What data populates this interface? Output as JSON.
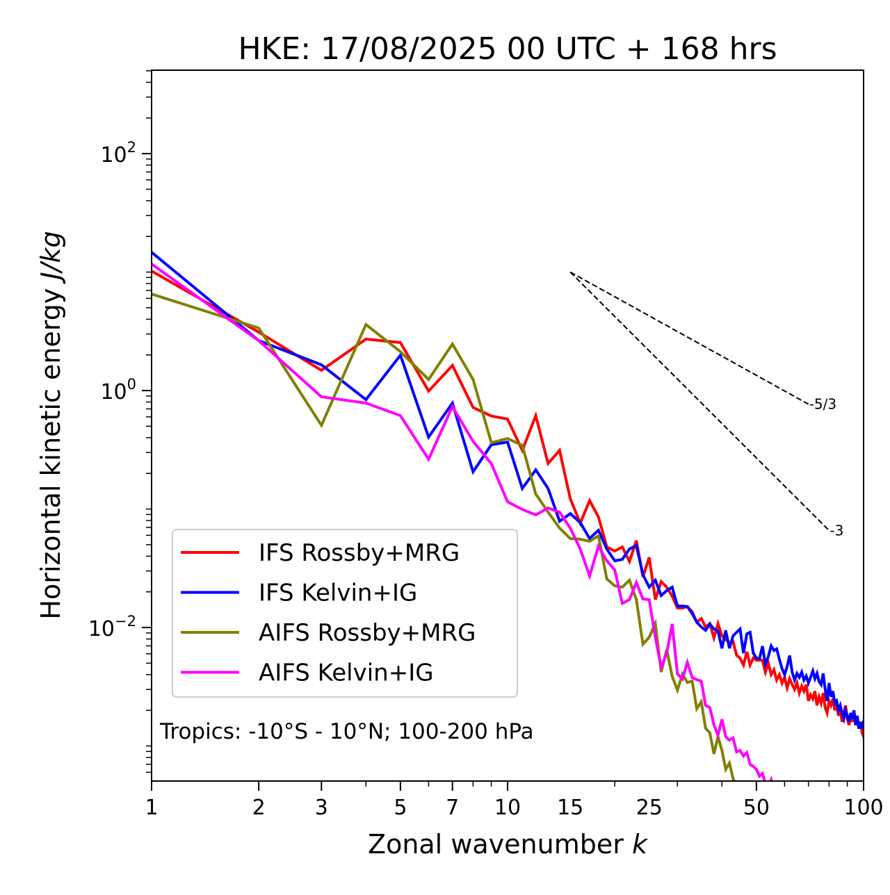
{
  "chart_data": {
    "type": "line",
    "title": "HKE: 17/08/2025 00 UTC + 168 hrs",
    "xlabel": "Zonal wavenumber",
    "xlabel_italic": "k",
    "ylabel": "Horizontal kinetic energy",
    "ylabel_italic": "J/kg",
    "xscale": "log",
    "yscale": "log",
    "xlim": [
      1,
      100
    ],
    "ylim": [
      0.000506,
      506
    ],
    "grid": false,
    "x_ticks": [
      {
        "value": 1,
        "label": "1"
      },
      {
        "value": 2,
        "label": "2"
      },
      {
        "value": 3,
        "label": "3"
      },
      {
        "value": 5,
        "label": "5"
      },
      {
        "value": 7,
        "label": "7"
      },
      {
        "value": 10,
        "label": "10"
      },
      {
        "value": 15,
        "label": "15"
      },
      {
        "value": 25,
        "label": "25"
      },
      {
        "value": 50,
        "label": "50"
      },
      {
        "value": 100,
        "label": "100"
      }
    ],
    "y_ticks": [
      {
        "value": 100,
        "base": "10",
        "exp": "2"
      },
      {
        "value": 1,
        "base": "10",
        "exp": "0"
      },
      {
        "value": 0.01,
        "base": "10",
        "exp": "−2"
      }
    ],
    "legend": {
      "placement": "lower-left",
      "entries": [
        "IFS Rossby+MRG",
        "IFS Kelvin+IG",
        "AIFS Rossby+MRG",
        "AIFS Kelvin+IG"
      ]
    },
    "annotation": "Tropics: -10°S - 10°N; 100-200 hPa",
    "reference_lines": [
      {
        "label": "-5/3",
        "slope": -1.6667,
        "k_start": 15,
        "k_end": 70,
        "e_start": 10
      },
      {
        "label": "-3",
        "slope": -3,
        "k_start": 15,
        "k_end": 80,
        "e_start": 10
      }
    ],
    "series": [
      {
        "name": "IFS Rossby+MRG",
        "color": "#ff0000",
        "k_start": 1,
        "values": [
          10.2,
          3.11,
          1.48,
          2.72,
          2.54,
          0.99,
          1.63,
          0.72,
          0.61,
          0.575,
          0.313,
          0.615,
          0.242,
          0.313,
          0.122,
          0.0759,
          0.118,
          0.0857,
          0.0479,
          0.0442,
          0.0479,
          0.0361,
          0.0541,
          0.0268,
          0.0391,
          0.0172,
          0.0244,
          0.0219,
          0.0184,
          0.0146,
          0.0146,
          0.015,
          0.0136,
          0.0111,
          0.0119,
          0.0101,
          0.0108,
          0.00817,
          0.0108,
          0.00851,
          0.00795,
          0.00743,
          0.00764,
          0.00582,
          0.00552,
          0.00482,
          0.00624,
          0.00482,
          0.00552,
          0.0053,
          0.0053,
          0.0053,
          0.0042,
          0.005,
          0.004,
          0.0044,
          0.0036,
          0.004,
          0.0034,
          0.0038,
          0.0031,
          0.0037,
          0.0033,
          0.003,
          0.0034,
          0.0028,
          0.0032,
          0.0029,
          0.0033,
          0.0024,
          0.0027,
          0.0025,
          0.0029,
          0.0022,
          0.0026,
          0.0023,
          0.0028,
          0.0021,
          0.0019,
          0.0024,
          0.0022,
          0.0025,
          0.002,
          0.0023,
          0.0018,
          0.0021,
          0.0016,
          0.0019,
          0.0022,
          0.0017,
          0.0015,
          0.0018,
          0.0016,
          0.0019,
          0.0015,
          0.0017,
          0.0014,
          0.0016,
          0.0013,
          0.0012
        ]
      },
      {
        "name": "IFS Kelvin+IG",
        "color": "#0000ff",
        "k_start": 1,
        "values": [
          14.7,
          2.64,
          1.65,
          0.839,
          1.99,
          0.405,
          0.784,
          0.206,
          0.349,
          0.368,
          0.149,
          0.214,
          0.149,
          0.0789,
          0.0916,
          0.0769,
          0.0564,
          0.0662,
          0.046,
          0.0366,
          0.0376,
          0.046,
          0.0492,
          0.0279,
          0.0219,
          0.0251,
          0.0186,
          0.0205,
          0.0219,
          0.0152,
          0.0152,
          0.015,
          0.0131,
          0.0111,
          0.0101,
          0.00947,
          0.0107,
          0.00973,
          0.00935,
          0.00667,
          0.00947,
          0.00667,
          0.00851,
          0.0091,
          0.00973,
          0.00607,
          0.00885,
          0.0091,
          0.00607,
          0.00552,
          0.00545,
          0.00695,
          0.0049,
          0.0057,
          0.007,
          0.0064,
          0.0066,
          0.0054,
          0.0045,
          0.004,
          0.0047,
          0.0058,
          0.0042,
          0.0036,
          0.0041,
          0.0038,
          0.0042,
          0.0036,
          0.0039,
          0.0034,
          0.0038,
          0.0043,
          0.0037,
          0.0041,
          0.0035,
          0.0033,
          0.0041,
          0.003,
          0.0024,
          0.0034,
          0.0026,
          0.0029,
          0.0023,
          0.0024,
          0.002,
          0.0022,
          0.0019,
          0.0017,
          0.002,
          0.0018,
          0.0016,
          0.0019,
          0.0017,
          0.002,
          0.0015,
          0.0018,
          0.0014,
          0.0016,
          0.0014,
          0.0016
        ]
      },
      {
        "name": "AIFS Rossby+MRG",
        "color": "#808000",
        "k_start": 1,
        "values": [
          6.53,
          3.37,
          0.509,
          3.61,
          2.13,
          1.24,
          2.47,
          1.24,
          0.363,
          0.394,
          0.344,
          0.134,
          0.0942,
          0.069,
          0.0564,
          0.0556,
          0.0534,
          0.0595,
          0.0257,
          0.0225,
          0.0219,
          0.0251,
          0.0172,
          0.00723,
          0.00828,
          0.0108,
          0.00421,
          0.00649,
          0.00388,
          0.00296,
          0.00405,
          0.00344,
          0.00353,
          0.00206,
          0.00236,
          0.00141,
          0.00129,
          0.000857,
          0.0012,
          0.000917,
          0.000636,
          0.000718,
          0.000533,
          0.00045,
          0.00038
        ]
      },
      {
        "name": "AIFS Kelvin+IG",
        "color": "#ff00ff",
        "k_start": 1,
        "values": [
          11.7,
          2.64,
          0.886,
          0.784,
          0.615,
          0.263,
          0.733,
          0.373,
          0.242,
          0.115,
          0.0993,
          0.0892,
          0.102,
          0.0942,
          0.069,
          0.046,
          0.0272,
          0.0486,
          0.0366,
          0.0307,
          0.016,
          0.0172,
          0.024,
          0.0174,
          0.0172,
          0.00828,
          0.00463,
          0.00607,
          0.0107,
          0.00405,
          0.00368,
          0.00509,
          0.00378,
          0.00363,
          0.00353,
          0.0022,
          0.00211,
          0.00151,
          0.00123,
          0.00168,
          0.0012,
          0.00112,
          0.00117,
          0.000891,
          0.000917,
          0.000822,
          0.000879,
          0.0007,
          0.000672,
          0.000636,
          0.000556,
          0.000586,
          0.00048,
          0.00046,
          0.00052,
          0.00042
        ]
      }
    ]
  }
}
